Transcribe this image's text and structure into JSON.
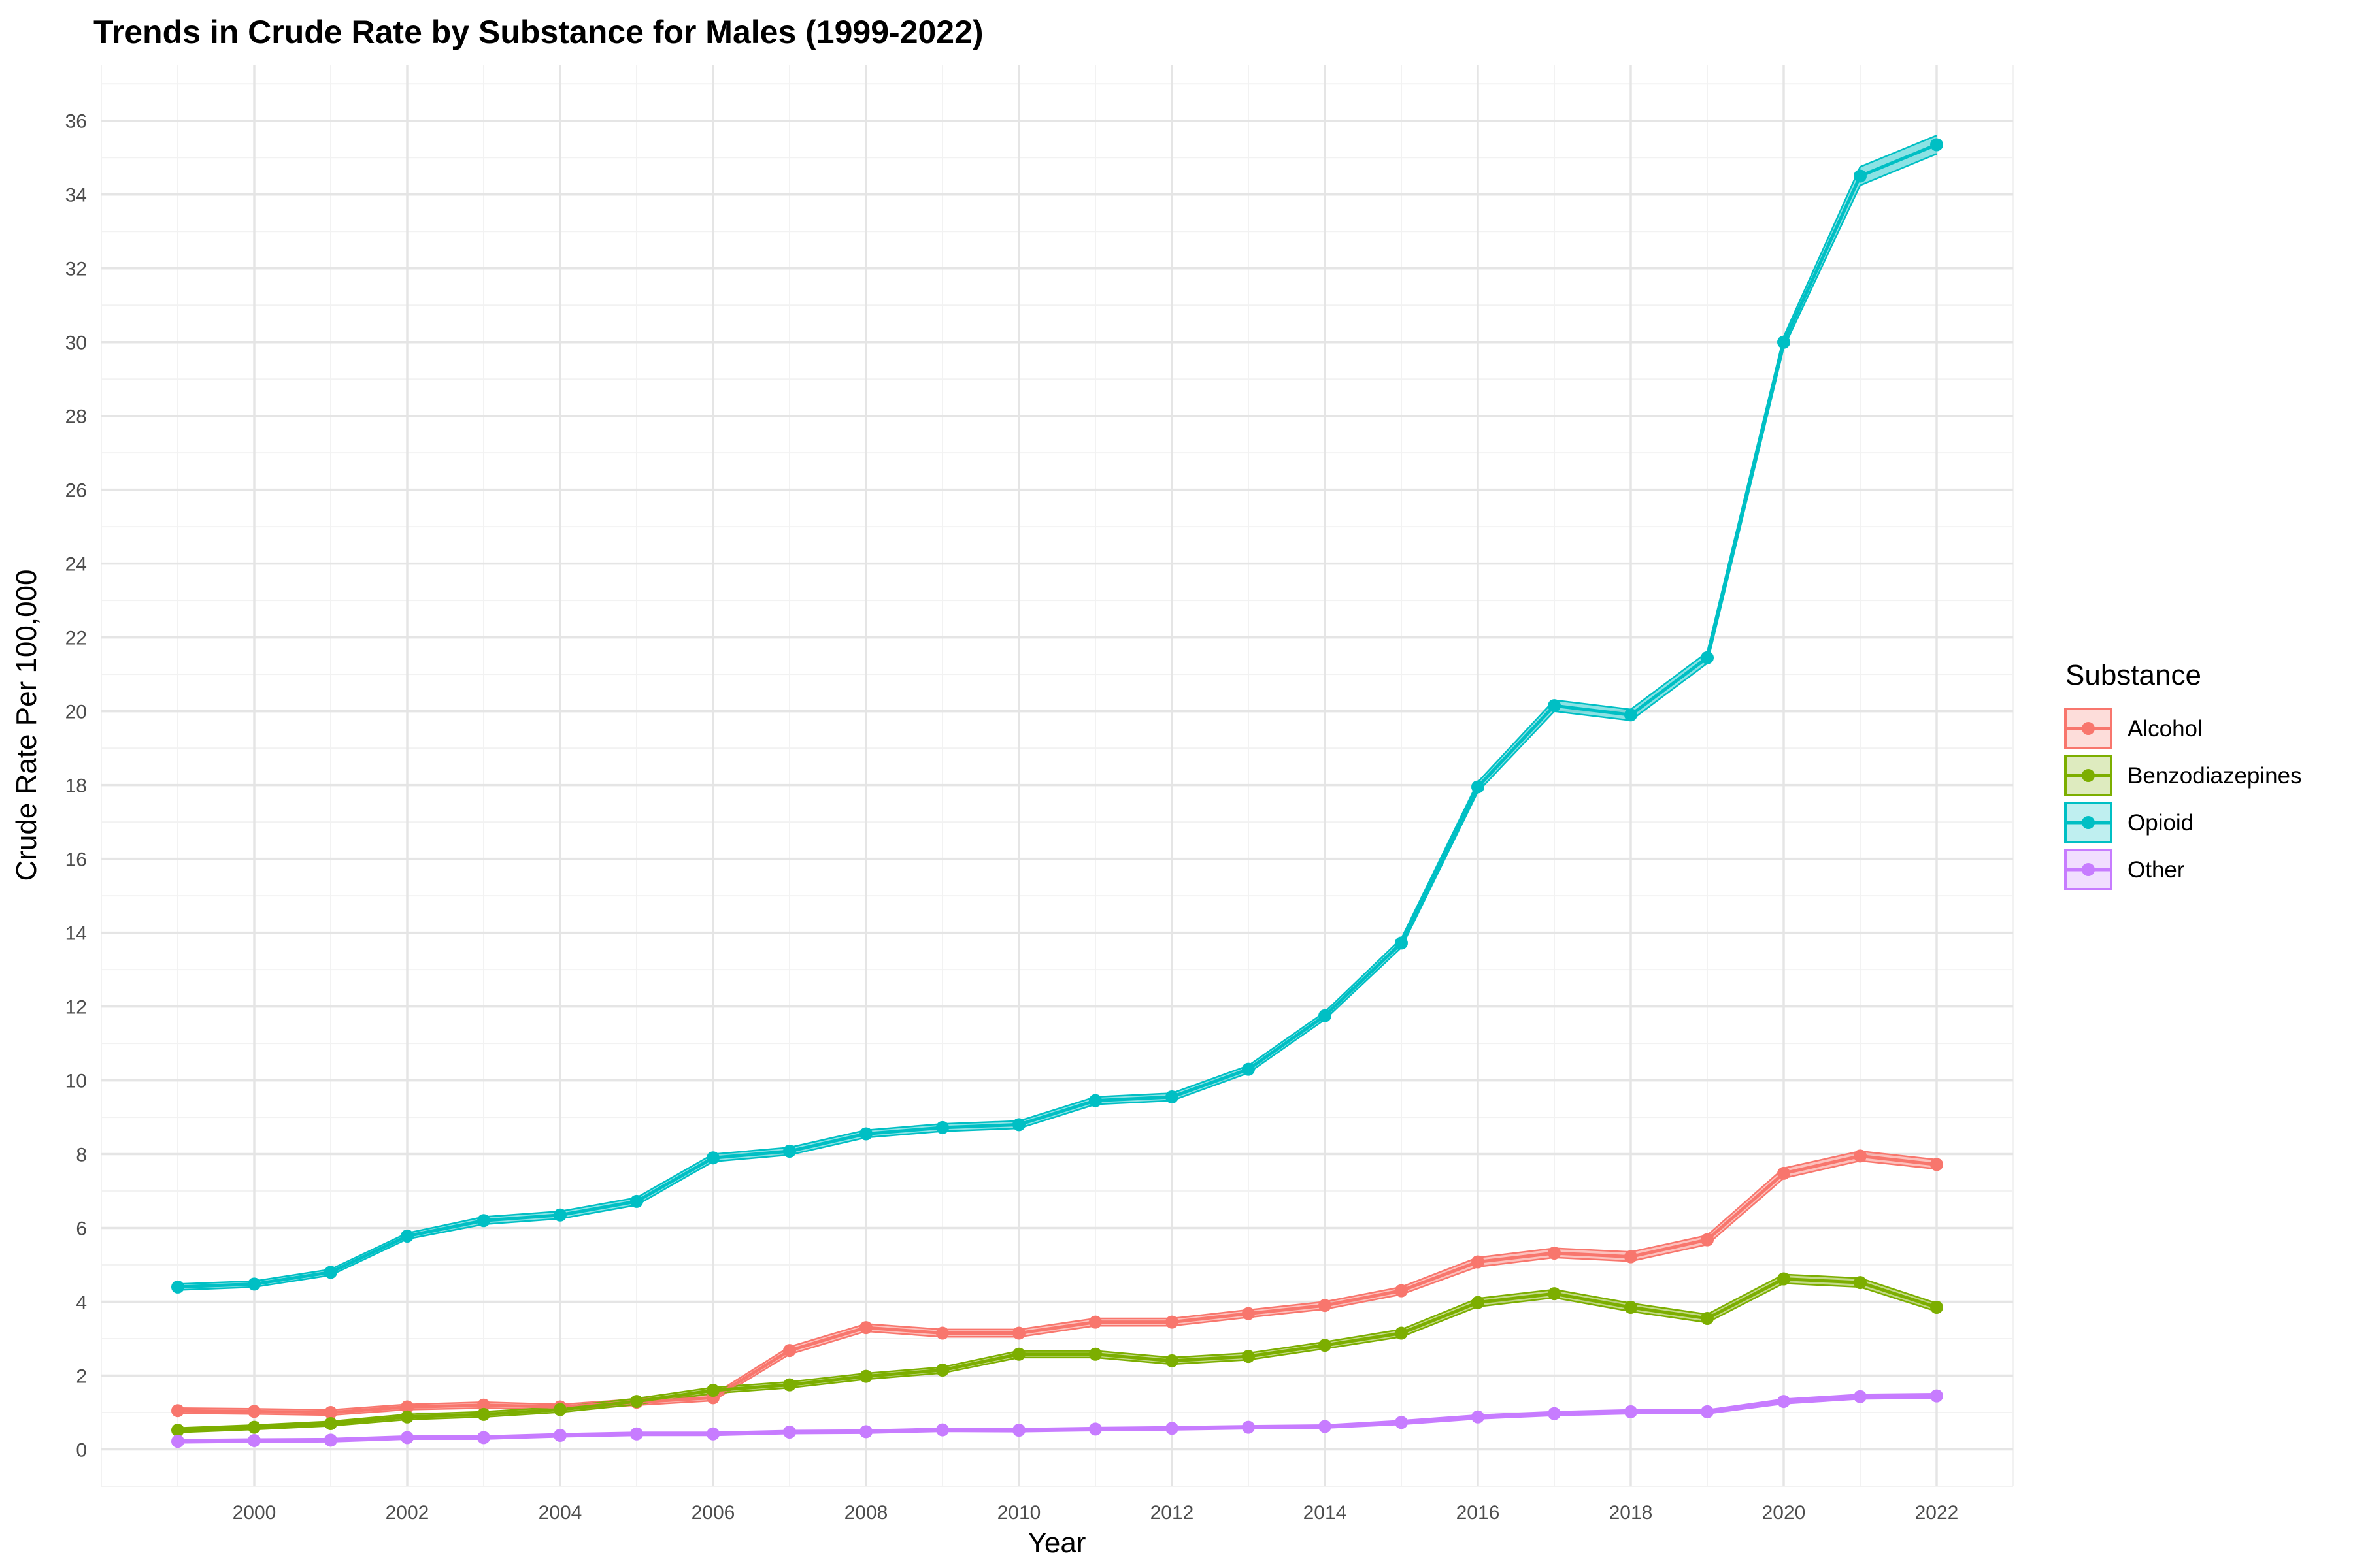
{
  "chart_data": {
    "type": "line",
    "title": "Trends in Crude Rate by Substance for Males (1999-2022)",
    "xlabel": "Year",
    "ylabel": "Crude Rate Per 100,000",
    "x": [
      1999,
      2000,
      2001,
      2002,
      2003,
      2004,
      2005,
      2006,
      2007,
      2008,
      2009,
      2010,
      2011,
      2012,
      2013,
      2014,
      2015,
      2016,
      2017,
      2018,
      2019,
      2020,
      2021,
      2022
    ],
    "xlim": [
      1998,
      2023
    ],
    "ylim": [
      -1,
      37.5
    ],
    "x_ticks": [
      2000,
      2002,
      2004,
      2006,
      2008,
      2010,
      2012,
      2014,
      2016,
      2018,
      2020,
      2022
    ],
    "x_tick_labels": [
      "2000",
      "2002",
      "2004",
      "2006",
      "2008",
      "2010",
      "2012",
      "2014",
      "2016",
      "2018",
      "2020",
      "2022"
    ],
    "y_ticks": [
      0,
      2,
      4,
      6,
      8,
      10,
      12,
      14,
      16,
      18,
      20,
      22,
      24,
      26,
      28,
      30,
      32,
      34,
      36
    ],
    "y_tick_labels": [
      "0",
      "2",
      "4",
      "6",
      "8",
      "10",
      "12",
      "14",
      "16",
      "18",
      "20",
      "22",
      "24",
      "26",
      "28",
      "30",
      "32",
      "34",
      "36"
    ],
    "grid": true,
    "legend": {
      "title": "Substance",
      "placement": "right"
    },
    "series": [
      {
        "name": "Alcohol",
        "color": "#F8766D",
        "values": [
          1.05,
          1.03,
          1.0,
          1.15,
          1.2,
          1.15,
          1.28,
          1.4,
          2.68,
          3.3,
          3.15,
          3.15,
          3.45,
          3.45,
          3.68,
          3.9,
          4.3,
          5.08,
          5.32,
          5.22,
          5.68,
          7.48,
          7.95,
          7.72
        ],
        "lower": [
          0.98,
          0.96,
          0.93,
          1.08,
          1.12,
          1.08,
          1.2,
          1.32,
          2.58,
          3.2,
          3.05,
          3.05,
          3.35,
          3.35,
          3.58,
          3.8,
          4.2,
          4.95,
          5.2,
          5.1,
          5.55,
          7.35,
          7.82,
          7.6
        ],
        "upper": [
          1.12,
          1.1,
          1.07,
          1.22,
          1.28,
          1.22,
          1.36,
          1.48,
          2.78,
          3.4,
          3.25,
          3.25,
          3.55,
          3.55,
          3.78,
          4.0,
          4.4,
          5.2,
          5.45,
          5.35,
          5.8,
          7.62,
          8.08,
          7.85
        ]
      },
      {
        "name": "Benzodiazepines",
        "color": "#7CAE00",
        "values": [
          0.52,
          0.6,
          0.7,
          0.88,
          0.95,
          1.08,
          1.3,
          1.6,
          1.75,
          1.98,
          2.15,
          2.58,
          2.58,
          2.4,
          2.52,
          2.82,
          3.15,
          3.98,
          4.22,
          3.85,
          3.55,
          4.62,
          4.52,
          3.85
        ],
        "lower": [
          0.46,
          0.54,
          0.64,
          0.81,
          0.88,
          1.01,
          1.22,
          1.52,
          1.67,
          1.9,
          2.07,
          2.49,
          2.49,
          2.31,
          2.43,
          2.73,
          3.05,
          3.87,
          4.11,
          3.74,
          3.44,
          4.5,
          4.4,
          3.74
        ],
        "upper": [
          0.58,
          0.66,
          0.76,
          0.95,
          1.02,
          1.15,
          1.38,
          1.68,
          1.83,
          2.06,
          2.23,
          2.67,
          2.67,
          2.49,
          2.61,
          2.91,
          3.25,
          4.09,
          4.33,
          3.96,
          3.66,
          4.74,
          4.64,
          3.96
        ]
      },
      {
        "name": "Opioid",
        "color": "#00BFC4",
        "values": [
          4.4,
          4.48,
          4.8,
          5.78,
          6.2,
          6.35,
          6.72,
          7.9,
          8.08,
          8.55,
          8.72,
          8.8,
          9.45,
          9.55,
          10.3,
          11.75,
          13.72,
          17.95,
          20.15,
          19.9,
          21.45,
          30.0,
          34.5,
          35.35
        ],
        "lower": [
          4.32,
          4.4,
          4.72,
          5.7,
          6.1,
          6.25,
          6.62,
          7.8,
          7.98,
          8.45,
          8.62,
          8.7,
          9.35,
          9.45,
          10.2,
          11.65,
          13.6,
          17.82,
          20.0,
          19.75,
          21.3,
          29.85,
          34.25,
          35.1
        ],
        "upper": [
          4.48,
          4.56,
          4.88,
          5.86,
          6.3,
          6.45,
          6.82,
          8.0,
          8.18,
          8.65,
          8.82,
          8.9,
          9.55,
          9.65,
          10.4,
          11.85,
          13.84,
          18.08,
          20.3,
          20.05,
          21.6,
          30.15,
          34.75,
          35.6
        ]
      },
      {
        "name": "Other",
        "color": "#C77CFF",
        "values": [
          0.22,
          0.24,
          0.25,
          0.32,
          0.32,
          0.38,
          0.42,
          0.42,
          0.47,
          0.48,
          0.53,
          0.52,
          0.55,
          0.57,
          0.6,
          0.62,
          0.73,
          0.88,
          0.97,
          1.02,
          1.02,
          1.3,
          1.43,
          1.45
        ],
        "lower": [
          0.18,
          0.2,
          0.21,
          0.28,
          0.28,
          0.34,
          0.38,
          0.38,
          0.43,
          0.44,
          0.49,
          0.48,
          0.51,
          0.53,
          0.56,
          0.58,
          0.68,
          0.83,
          0.92,
          0.97,
          0.97,
          1.24,
          1.37,
          1.39
        ],
        "upper": [
          0.26,
          0.28,
          0.29,
          0.36,
          0.36,
          0.42,
          0.46,
          0.46,
          0.51,
          0.52,
          0.57,
          0.56,
          0.59,
          0.61,
          0.64,
          0.66,
          0.78,
          0.93,
          1.02,
          1.07,
          1.07,
          1.36,
          1.49,
          1.51
        ]
      }
    ]
  }
}
